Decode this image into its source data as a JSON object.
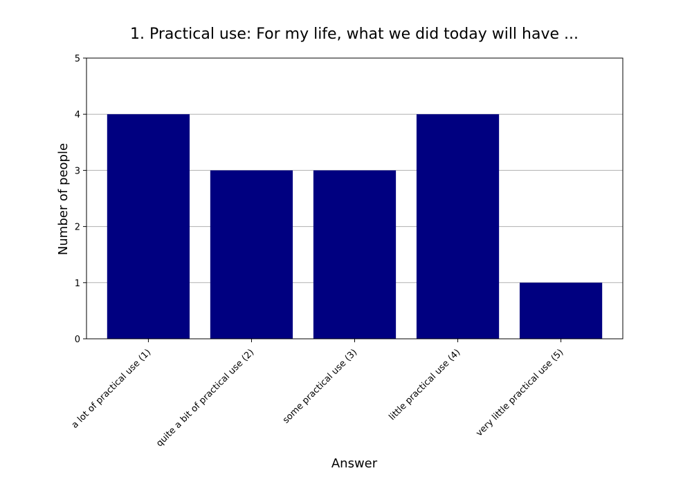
{
  "chart_data": {
    "type": "bar",
    "title": "1. Practical use: For my life, what we did today will have ...",
    "xlabel": "Answer",
    "ylabel": "Number of people",
    "categories": [
      "a lot of practical use (1)",
      "quite a bit of practical use (2)",
      "some practical use (3)",
      "little practical use (4)",
      "very little practical use (5)"
    ],
    "values": [
      4,
      3,
      3,
      4,
      1
    ],
    "ylim": [
      0,
      5
    ],
    "yticks": [
      0,
      1,
      2,
      3,
      4,
      5
    ],
    "grid": "horizontal",
    "bar_color": "#000080",
    "grid_color": "#b0b0b0"
  }
}
